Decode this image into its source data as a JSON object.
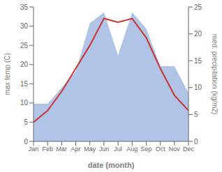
{
  "chart_data": {
    "type": "line",
    "categories": [
      "Jan",
      "Feb",
      "Mar",
      "Apr",
      "May",
      "Jun",
      "Jul",
      "Aug",
      "Sep",
      "Oct",
      "Nov",
      "Dec"
    ],
    "xlabel": "date (month)",
    "ylabel": "max temp (C)",
    "y2label": "med. precipitation (kg/m2)",
    "ylim": [
      0,
      35
    ],
    "yticks": [
      0,
      5,
      10,
      15,
      20,
      25,
      30,
      35
    ],
    "y2lim": [
      0,
      25
    ],
    "y2ticks": [
      0,
      5,
      10,
      15,
      20,
      25
    ],
    "grid": false,
    "series": [
      {
        "type": "area",
        "axis": "y2",
        "color": "#b0c4e8",
        "values": [
          7,
          7,
          10,
          13,
          22,
          24,
          16,
          24,
          21,
          14,
          14,
          9
        ]
      },
      {
        "type": "line",
        "color": "#cc3333",
        "values": [
          5,
          8,
          13,
          19,
          25,
          32,
          31,
          32,
          27,
          19,
          12,
          8
        ]
      }
    ]
  }
}
